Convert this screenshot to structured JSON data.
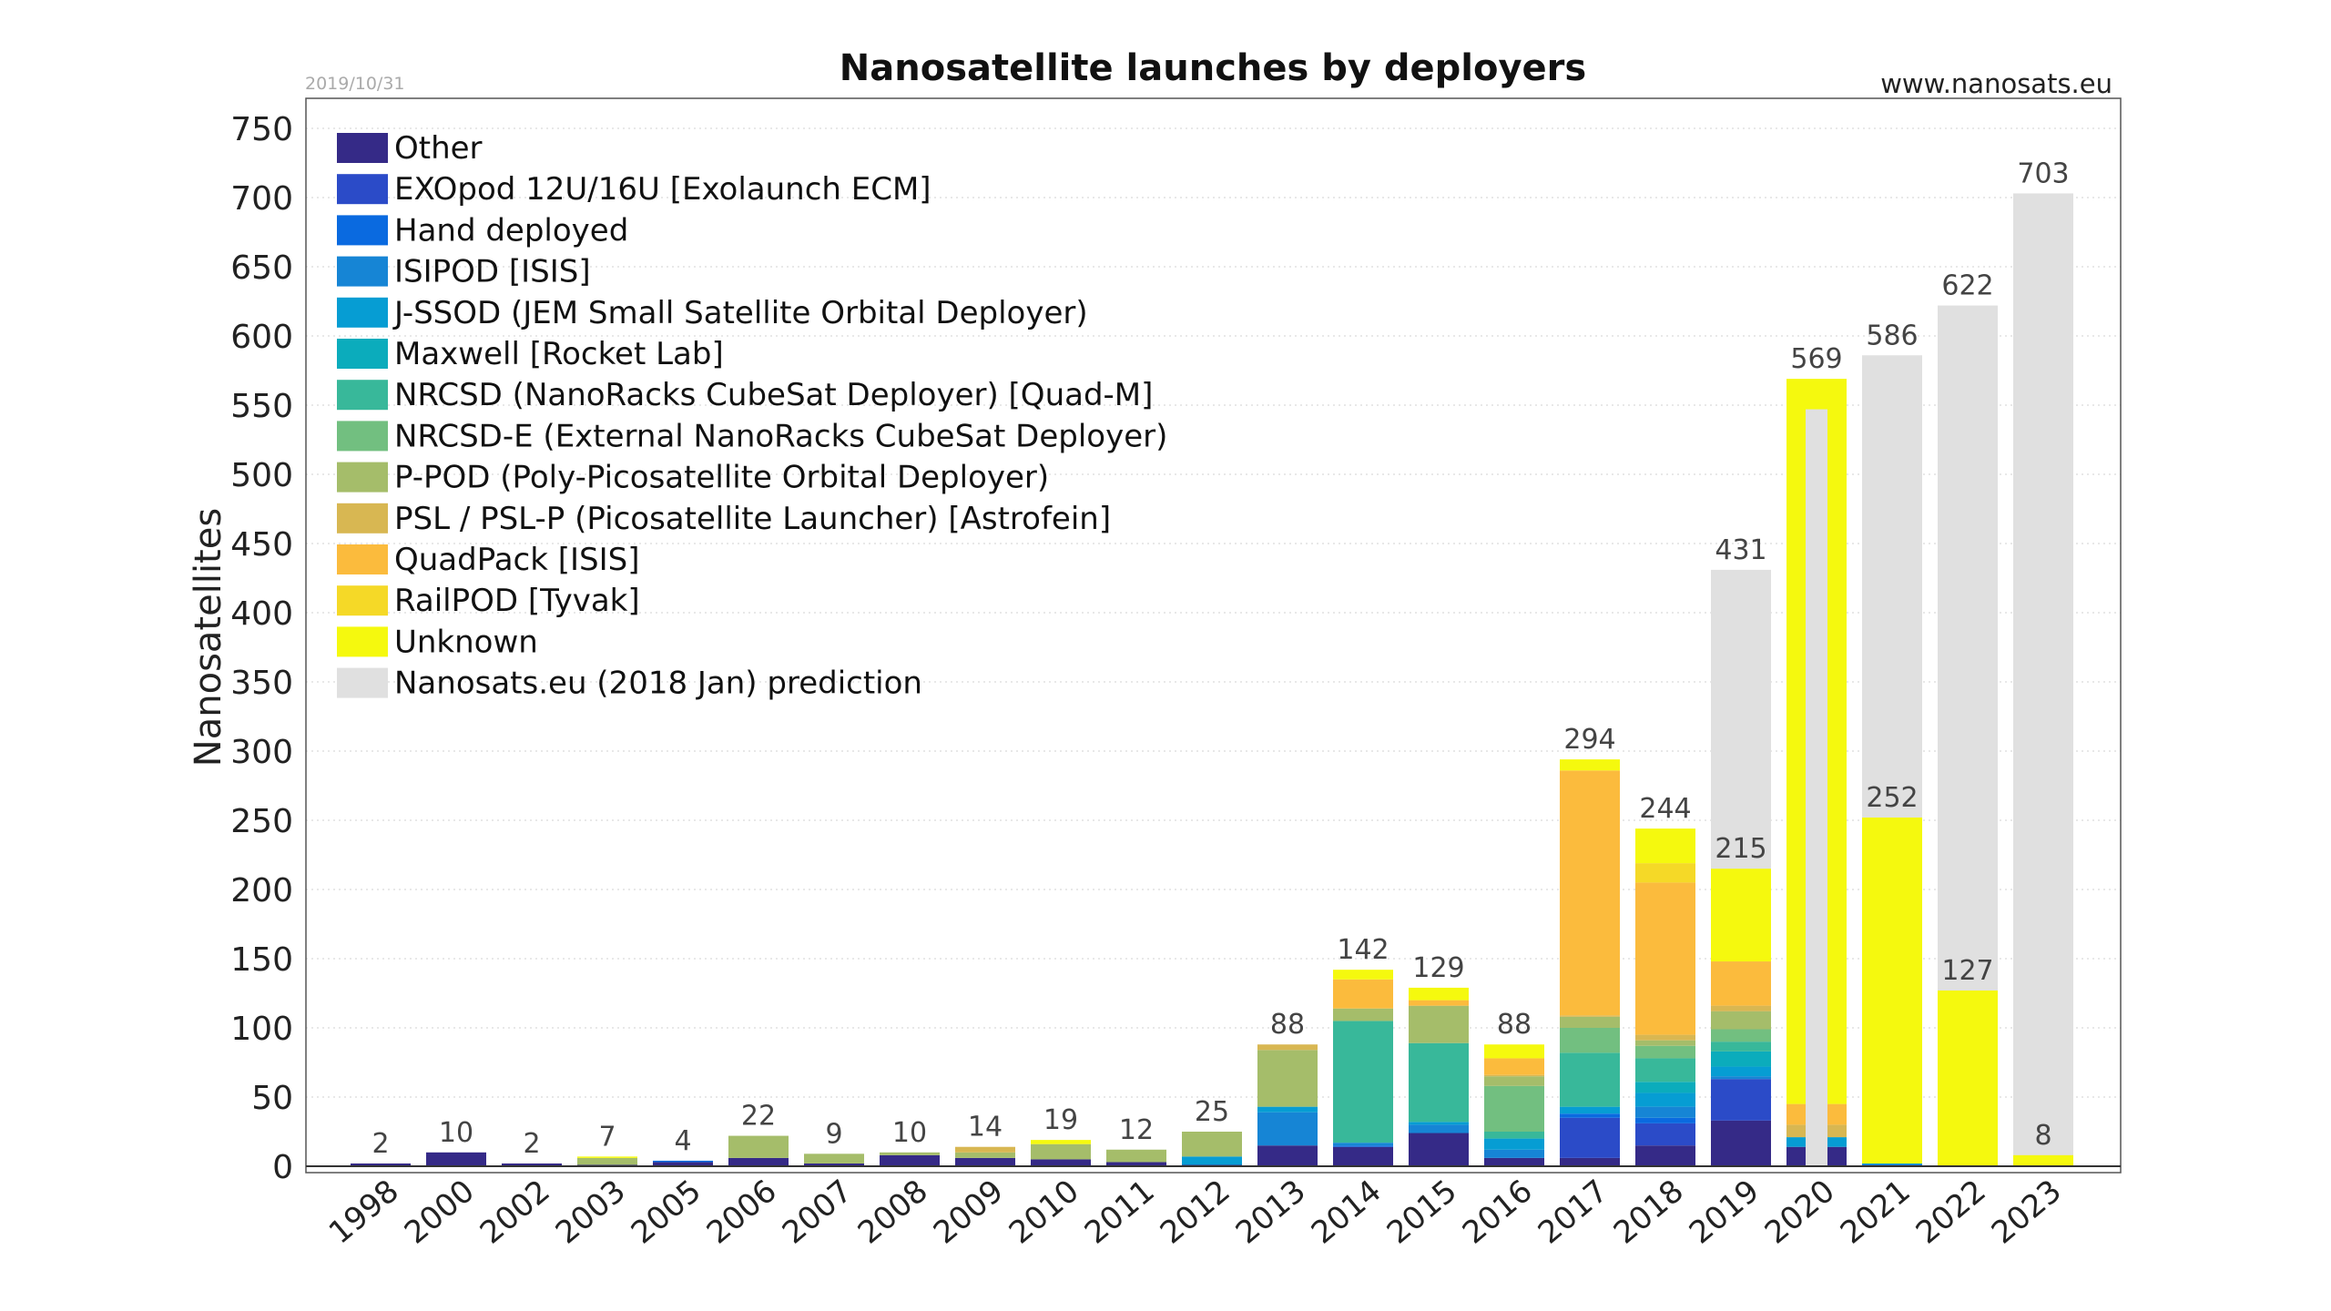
{
  "chart_data": {
    "type": "bar",
    "stacked": true,
    "title": "Nanosatellite launches by deployers",
    "date": "2019/10/31",
    "source": "www.nanosats.eu",
    "xlabel": "",
    "ylabel": "Nanosatellites",
    "ylim": [
      0,
      750
    ],
    "yticks": [
      0,
      50,
      100,
      150,
      200,
      250,
      300,
      350,
      400,
      450,
      500,
      550,
      600,
      650,
      700,
      750
    ],
    "grid": true,
    "legend_position": "top-left",
    "categories": [
      "1998",
      "2000",
      "2002",
      "2003",
      "2005",
      "2006",
      "2007",
      "2008",
      "2009",
      "2010",
      "2011",
      "2012",
      "2013",
      "2014",
      "2015",
      "2016",
      "2017",
      "2018",
      "2019",
      "2020",
      "2021",
      "2022",
      "2023"
    ],
    "series": [
      {
        "name": "Other",
        "color": "#352a87",
        "values": [
          2,
          10,
          2,
          1,
          3,
          6,
          2,
          8,
          6,
          5,
          3,
          1,
          15,
          14,
          24,
          6,
          6,
          15,
          33,
          14,
          0,
          0,
          0
        ]
      },
      {
        "name": "EXOpod 12U/16U [Exolaunch ECM]",
        "color": "#2b4bc8",
        "values": [
          0,
          0,
          0,
          0,
          0,
          0,
          0,
          0,
          0,
          0,
          0,
          0,
          0,
          0,
          0,
          0,
          29,
          16,
          30,
          0,
          1,
          0,
          0
        ]
      },
      {
        "name": "Hand deployed",
        "color": "#0a6ae0",
        "values": [
          0,
          0,
          0,
          0,
          1,
          0,
          0,
          0,
          0,
          0,
          0,
          0,
          0,
          1,
          0,
          0,
          3,
          4,
          0,
          0,
          0,
          0,
          0
        ]
      },
      {
        "name": "ISIPOD [ISIS]",
        "color": "#1685d5",
        "values": [
          0,
          0,
          0,
          0,
          0,
          0,
          0,
          0,
          0,
          0,
          0,
          0,
          24,
          2,
          6,
          6,
          0,
          8,
          2,
          0,
          0,
          0,
          0
        ]
      },
      {
        "name": "J-SSOD (JEM Small Satellite Orbital Deployer)",
        "color": "#069dd3",
        "values": [
          0,
          0,
          0,
          0,
          0,
          0,
          0,
          0,
          0,
          0,
          0,
          6,
          4,
          0,
          2,
          8,
          5,
          10,
          7,
          7,
          1,
          0,
          0
        ]
      },
      {
        "name": "Maxwell [Rocket Lab]",
        "color": "#0bacbc",
        "values": [
          0,
          0,
          0,
          0,
          0,
          0,
          0,
          0,
          0,
          0,
          0,
          0,
          0,
          0,
          0,
          0,
          0,
          8,
          11,
          0,
          0,
          0,
          0
        ]
      },
      {
        "name": "NRCSD (NanoRacks CubeSat Deployer)  [Quad-M]",
        "color": "#38b89a",
        "values": [
          0,
          0,
          0,
          0,
          0,
          0,
          0,
          0,
          0,
          0,
          0,
          0,
          0,
          88,
          57,
          5,
          39,
          17,
          7,
          0,
          0,
          0,
          0
        ]
      },
      {
        "name": "NRCSD-E (External NanoRacks CubeSat Deployer)",
        "color": "#72bf80",
        "values": [
          0,
          0,
          0,
          0,
          0,
          0,
          0,
          0,
          0,
          0,
          0,
          0,
          0,
          0,
          0,
          33,
          18,
          9,
          9,
          0,
          0,
          0,
          0
        ]
      },
      {
        "name": "P-POD (Poly-Picosatellite Orbital Deployer)",
        "color": "#a5bd6a",
        "values": [
          0,
          0,
          0,
          5,
          0,
          16,
          7,
          2,
          4,
          11,
          9,
          18,
          41,
          9,
          27,
          7,
          8,
          4,
          13,
          0,
          0,
          0,
          0
        ]
      },
      {
        "name": "PSL / PSL-P (Picosatellite Launcher) [Astrofein]",
        "color": "#d8b752",
        "values": [
          0,
          0,
          0,
          0,
          0,
          0,
          0,
          0,
          4,
          0,
          0,
          0,
          4,
          0,
          0,
          1,
          1,
          4,
          4,
          9,
          0,
          0,
          0
        ]
      },
      {
        "name": "QuadPack [ISIS]",
        "color": "#fbbb3d",
        "values": [
          0,
          0,
          0,
          0,
          0,
          0,
          0,
          0,
          0,
          0,
          0,
          0,
          0,
          21,
          4,
          12,
          177,
          110,
          32,
          15,
          0,
          0,
          0
        ]
      },
      {
        "name": "RailPOD [Tyvak]",
        "color": "#f5d927",
        "values": [
          0,
          0,
          0,
          0,
          0,
          0,
          0,
          0,
          0,
          0,
          0,
          0,
          0,
          0,
          0,
          0,
          0,
          14,
          0,
          0,
          0,
          0,
          0
        ]
      },
      {
        "name": "Unknown",
        "color": "#f5f90e",
        "values": [
          0,
          0,
          0,
          1,
          0,
          0,
          0,
          0,
          0,
          3,
          0,
          0,
          0,
          7,
          9,
          10,
          8,
          25,
          67,
          524,
          250,
          127,
          8
        ]
      }
    ],
    "prediction": {
      "name": "Nanosats.eu (2018 Jan) prediction",
      "color": "#e0e0e0",
      "values": [
        null,
        null,
        null,
        null,
        null,
        null,
        null,
        null,
        null,
        null,
        null,
        null,
        null,
        null,
        null,
        null,
        null,
        null,
        431,
        547,
        586,
        622,
        703
      ]
    },
    "totals": [
      2,
      10,
      2,
      7,
      4,
      22,
      9,
      10,
      14,
      19,
      12,
      25,
      88,
      142,
      129,
      88,
      294,
      244,
      215,
      569,
      252,
      127,
      8
    ],
    "prediction_labels": [
      null,
      null,
      null,
      null,
      null,
      null,
      null,
      null,
      null,
      null,
      null,
      null,
      null,
      null,
      null,
      null,
      null,
      null,
      431,
      null,
      586,
      622,
      703
    ]
  }
}
